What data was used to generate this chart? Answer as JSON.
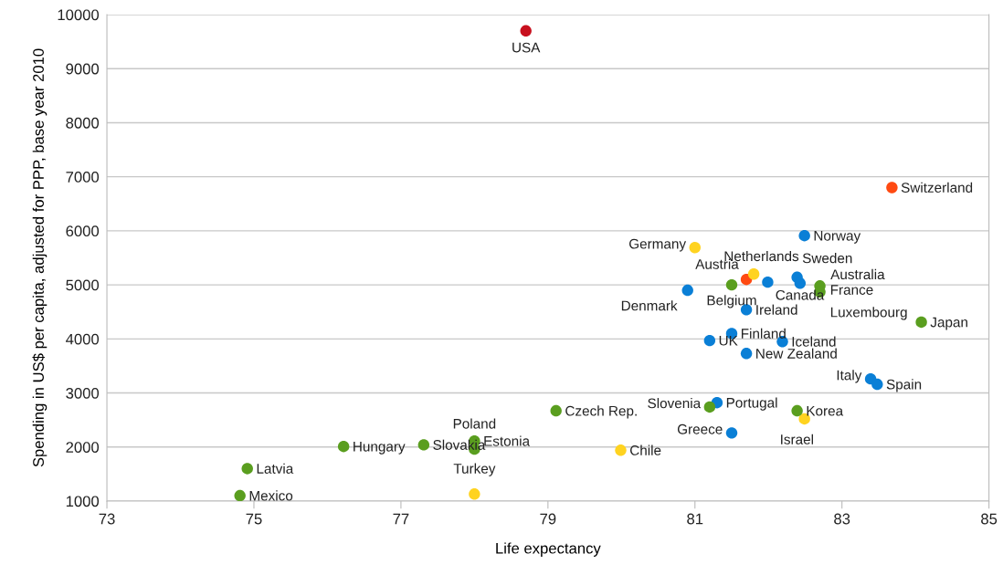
{
  "chart_data": {
    "type": "scatter",
    "xlabel": "Life expectancy",
    "ylabel": "Spending in US$ per capita, adjusted for PPP, base year 2010",
    "xlim": [
      73,
      85
    ],
    "xticks": [
      73,
      75,
      77,
      79,
      81,
      83,
      85
    ],
    "ylim": [
      1000,
      10000
    ],
    "yticks": [
      1000,
      2000,
      3000,
      4000,
      5000,
      6000,
      7000,
      8000,
      9000,
      10000
    ],
    "grid": "y",
    "marker": "circle",
    "legend": false,
    "series": [
      {
        "color": "#c8101e",
        "x": [
          78.7
        ],
        "values": [
          9700
        ]
      },
      {
        "color": "#ff4a12",
        "x": [
          83.68,
          81.7
        ],
        "values": [
          6800,
          5100
        ]
      },
      {
        "color": "#ffd320",
        "x": [
          81.0,
          81.8,
          82.49,
          79.99,
          78.0
        ],
        "values": [
          5690,
          5200,
          2520,
          1940,
          1130
        ]
      },
      {
        "color": "#0a7fd6",
        "x": [
          82.49,
          80.9,
          81.99,
          82.39,
          82.43,
          81.7,
          81.5,
          81.2,
          82.19,
          81.7,
          83.39,
          83.48,
          81.3,
          81.5
        ],
        "values": [
          5910,
          4900,
          5050,
          5140,
          5030,
          4540,
          4100,
          3970,
          3950,
          3730,
          3260,
          3160,
          2820,
          2260
        ]
      },
      {
        "color": "#5a9e1f",
        "x": [
          81.5,
          82.7,
          82.7,
          84.08,
          81.2,
          79.11,
          82.39,
          78.0,
          78.0,
          77.31,
          76.22,
          74.91,
          74.81
        ],
        "values": [
          5000,
          4980,
          4870,
          4310,
          2740,
          2670,
          2670,
          2110,
          1960,
          2040,
          2010,
          1600,
          1100
        ]
      }
    ],
    "annotations": [
      {
        "text": "USA",
        "x": 78.7,
        "y": 9700
      },
      {
        "text": "Switzerland",
        "x": 83.68,
        "y": 6800
      },
      {
        "text": "Austria",
        "x": 81.7,
        "y": 5100
      },
      {
        "text": "Germany",
        "x": 81.0,
        "y": 5690
      },
      {
        "text": "Netherlands",
        "x": 81.8,
        "y": 5200
      },
      {
        "text": "Israel",
        "x": 82.49,
        "y": 2520
      },
      {
        "text": "Chile",
        "x": 79.99,
        "y": 1940
      },
      {
        "text": "Turkey",
        "x": 78.0,
        "y": 1130
      },
      {
        "text": "Norway",
        "x": 82.49,
        "y": 5910
      },
      {
        "text": "Denmark",
        "x": 80.9,
        "y": 4900
      },
      {
        "text": "Canada",
        "x": 81.99,
        "y": 5050
      },
      {
        "text": "Sweden",
        "x": 82.39,
        "y": 5140
      },
      {
        "text": "Australia",
        "x": 82.43,
        "y": 5030
      },
      {
        "text": "Ireland",
        "x": 81.7,
        "y": 4540
      },
      {
        "text": "Finland",
        "x": 81.5,
        "y": 4100
      },
      {
        "text": "UK",
        "x": 81.2,
        "y": 3970
      },
      {
        "text": "Iceland",
        "x": 82.19,
        "y": 3950
      },
      {
        "text": "New Zealand",
        "x": 81.7,
        "y": 3730
      },
      {
        "text": "Italy",
        "x": 83.39,
        "y": 3260
      },
      {
        "text": "Spain",
        "x": 83.48,
        "y": 3160
      },
      {
        "text": "Portugal",
        "x": 81.3,
        "y": 2820
      },
      {
        "text": "Greece",
        "x": 81.5,
        "y": 2260
      },
      {
        "text": "Belgium",
        "x": 81.5,
        "y": 5000
      },
      {
        "text": "France",
        "x": 82.7,
        "y": 4980
      },
      {
        "text": "Luxembourg",
        "x": 82.7,
        "y": 4870
      },
      {
        "text": "Japan",
        "x": 84.08,
        "y": 4310
      },
      {
        "text": "Slovenia",
        "x": 81.2,
        "y": 2740
      },
      {
        "text": "Czech Rep.",
        "x": 79.11,
        "y": 2670
      },
      {
        "text": "Korea",
        "x": 82.39,
        "y": 2670
      },
      {
        "text": "Estonia",
        "x": 78.0,
        "y": 2110
      },
      {
        "text": "Poland",
        "x": 78.0,
        "y": 1960
      },
      {
        "text": "Slovakia",
        "x": 77.31,
        "y": 2040
      },
      {
        "text": "Hungary",
        "x": 76.22,
        "y": 2010
      },
      {
        "text": "Latvia",
        "x": 74.91,
        "y": 1600
      },
      {
        "text": "Mexico",
        "x": 74.81,
        "y": 1100
      }
    ]
  }
}
